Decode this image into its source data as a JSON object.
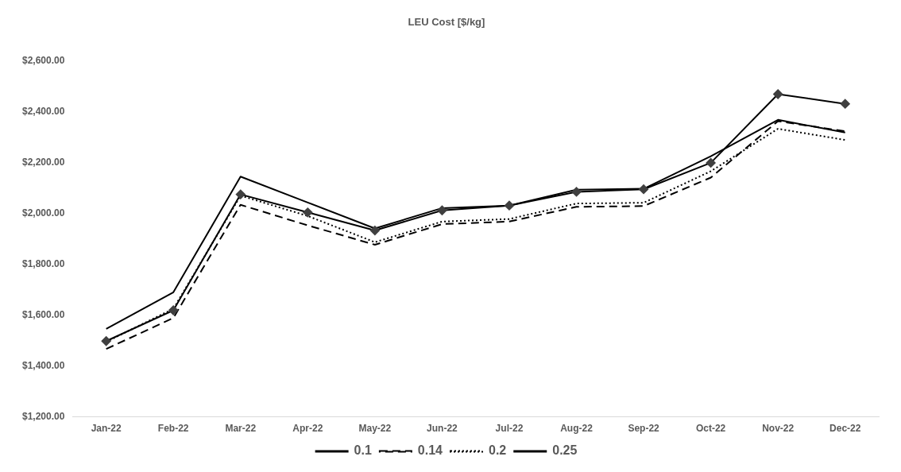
{
  "chart_data": {
    "type": "line",
    "title": "LEU Cost [$/kg]",
    "categories": [
      "Jan-22",
      "Feb-22",
      "Mar-22",
      "Apr-22",
      "May-22",
      "Jun-22",
      "Jul-22",
      "Aug-22",
      "Sep-22",
      "Oct-22",
      "Nov-22",
      "Dec-22"
    ],
    "ylim": [
      1200,
      2600
    ],
    "yticks": [
      {
        "value": 1200,
        "label": "$1,200.00"
      },
      {
        "value": 1400,
        "label": "$1,400.00"
      },
      {
        "value": 1600,
        "label": "$1,600.00"
      },
      {
        "value": 1800,
        "label": "$1,800.00"
      },
      {
        "value": 2000,
        "label": "$2,000.00"
      },
      {
        "value": 2200,
        "label": "$2,200.00"
      },
      {
        "value": 2400,
        "label": "$2,400.00"
      },
      {
        "value": 2600,
        "label": "$2,600.00"
      }
    ],
    "grid": false,
    "legend": "bottom",
    "series": [
      {
        "name": "0.1",
        "color": "#404040",
        "marker": "diamond",
        "line_style": "solid",
        "values": [
          1498,
          1619,
          2075,
          2004,
          1933,
          2012,
          2031,
          2085,
          2095,
          2199,
          2469,
          2431
        ]
      },
      {
        "name": "0.14",
        "color": "#000000",
        "marker": "none",
        "line_style": "dashed",
        "values": [
          1467,
          1589,
          2034,
          1953,
          1877,
          1958,
          1968,
          2026,
          2029,
          2141,
          2363,
          2323
        ]
      },
      {
        "name": "0.2",
        "color": "#000000",
        "marker": "none",
        "line_style": "dotted",
        "values": [
          1495,
          1625,
          2070,
          1990,
          1887,
          1968,
          1978,
          2039,
          2042,
          2166,
          2333,
          2289
        ]
      },
      {
        "name": "0.25",
        "color": "#000000",
        "marker": "none",
        "line_style": "solid",
        "values": [
          1546,
          1690,
          2145,
          2043,
          1941,
          2021,
          2031,
          2093,
          2097,
          2225,
          2368,
          2318
        ]
      }
    ]
  }
}
